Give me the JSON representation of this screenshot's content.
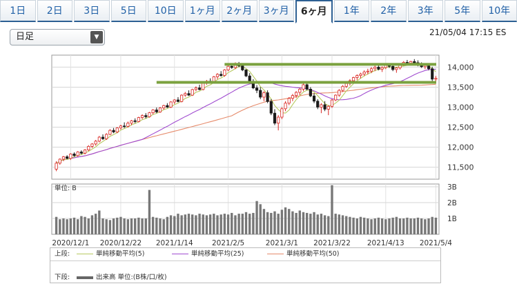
{
  "tabs": [
    {
      "label": "1日",
      "active": false
    },
    {
      "label": "2日",
      "active": false
    },
    {
      "label": "3日",
      "active": false
    },
    {
      "label": "5日",
      "active": false
    },
    {
      "label": "10日",
      "active": false
    },
    {
      "label": "1ヶ月",
      "active": false
    },
    {
      "label": "2ヶ月",
      "active": false
    },
    {
      "label": "3ヶ月",
      "active": false
    },
    {
      "label": "6ヶ月",
      "active": true
    },
    {
      "label": "1年",
      "active": false
    },
    {
      "label": "2年",
      "active": false
    },
    {
      "label": "3年",
      "active": false
    },
    {
      "label": "5年",
      "active": false
    },
    {
      "label": "10年",
      "active": false
    }
  ],
  "period_select": {
    "value": "日足"
  },
  "timestamp": "21/05/04 17:15 ES",
  "chart_data": {
    "type": "candlestick",
    "price_ticks": [
      "14,000",
      "13,500",
      "13,000",
      "12,500",
      "12,000",
      "11,500"
    ],
    "price_tick_values": [
      14000,
      13500,
      13000,
      12500,
      12000,
      11500
    ],
    "volume_ticks": [
      "3B",
      "2B",
      "1B"
    ],
    "volume_label": "単位: B",
    "x_labels": [
      "2020/12/1",
      "2020/12/22",
      "2021/1/14",
      "2021/2/5",
      "2021/3/1",
      "2021/3/22",
      "2021/4/13",
      "2021/5/4"
    ],
    "x_label_index": [
      4,
      18,
      33,
      48,
      63,
      77,
      92,
      106
    ],
    "horizontal_lines": [
      {
        "price": 14070,
        "start_index": 47,
        "color": "#7ba23f"
      },
      {
        "price": 13620,
        "start_index": 28,
        "color": "#7ba23f"
      }
    ],
    "colors": {
      "up": "#d9231f",
      "down": "#1a1a1a",
      "ma5": "#b7c95f",
      "ma25": "#a04bd0",
      "ma50": "#e68a6a",
      "volume": "#777777",
      "hline": "#7ba23f"
    },
    "candles": [
      [
        11450,
        11650,
        11400,
        11600
      ],
      [
        11600,
        11720,
        11560,
        11700
      ],
      [
        11700,
        11780,
        11650,
        11760
      ],
      [
        11760,
        11800,
        11700,
        11720
      ],
      [
        11720,
        11850,
        11680,
        11830
      ],
      [
        11830,
        11870,
        11760,
        11790
      ],
      [
        11790,
        11900,
        11760,
        11880
      ],
      [
        11880,
        11920,
        11820,
        11850
      ],
      [
        11850,
        11950,
        11820,
        11930
      ],
      [
        11930,
        12050,
        11900,
        12020
      ],
      [
        12020,
        12100,
        11980,
        12080
      ],
      [
        12080,
        12180,
        12040,
        12150
      ],
      [
        12150,
        12280,
        12120,
        12250
      ],
      [
        12250,
        12320,
        12180,
        12210
      ],
      [
        12210,
        12350,
        12180,
        12320
      ],
      [
        12320,
        12450,
        12300,
        12420
      ],
      [
        12420,
        12480,
        12350,
        12380
      ],
      [
        12380,
        12500,
        12350,
        12480
      ],
      [
        12480,
        12560,
        12440,
        12530
      ],
      [
        12530,
        12620,
        12480,
        12520
      ],
      [
        12520,
        12640,
        12490,
        12600
      ],
      [
        12600,
        12680,
        12550,
        12660
      ],
      [
        12660,
        12720,
        12600,
        12640
      ],
      [
        12640,
        12760,
        12620,
        12740
      ],
      [
        12740,
        12820,
        12700,
        12790
      ],
      [
        12790,
        12850,
        12720,
        12760
      ],
      [
        12760,
        12880,
        12740,
        12860
      ],
      [
        12860,
        12950,
        12820,
        12930
      ],
      [
        12930,
        12990,
        12850,
        12880
      ],
      [
        12880,
        13000,
        12860,
        12980
      ],
      [
        12980,
        13060,
        12940,
        13040
      ],
      [
        13040,
        13100,
        12980,
        13000
      ],
      [
        13000,
        13150,
        12980,
        13130
      ],
      [
        13130,
        13200,
        13080,
        13180
      ],
      [
        13180,
        13250,
        13120,
        13140
      ],
      [
        13140,
        13320,
        13120,
        13300
      ],
      [
        13300,
        13380,
        13260,
        13340
      ],
      [
        13340,
        13420,
        13280,
        13300
      ],
      [
        13300,
        13460,
        13280,
        13440
      ],
      [
        13440,
        13520,
        13400,
        13480
      ],
      [
        13480,
        13560,
        13420,
        13440
      ],
      [
        13440,
        13620,
        13420,
        13600
      ],
      [
        13600,
        13680,
        13560,
        13650
      ],
      [
        13650,
        13720,
        13600,
        13620
      ],
      [
        13620,
        13780,
        13600,
        13760
      ],
      [
        13760,
        13850,
        13700,
        13820
      ],
      [
        13820,
        13900,
        13760,
        13790
      ],
      [
        13790,
        13950,
        13760,
        13930
      ],
      [
        13930,
        14050,
        13900,
        14020
      ],
      [
        14020,
        14100,
        13960,
        13990
      ],
      [
        13990,
        14120,
        13950,
        14090
      ],
      [
        14090,
        14130,
        14000,
        14030
      ],
      [
        14030,
        14080,
        13900,
        13930
      ],
      [
        13930,
        13950,
        13750,
        13780
      ],
      [
        13780,
        13850,
        13600,
        13640
      ],
      [
        13640,
        13700,
        13450,
        13480
      ],
      [
        13480,
        13550,
        13350,
        13420
      ],
      [
        13420,
        13500,
        13200,
        13250
      ],
      [
        13250,
        13400,
        13150,
        13360
      ],
      [
        13360,
        13420,
        13100,
        13140
      ],
      [
        13140,
        13200,
        12800,
        12850
      ],
      [
        12850,
        12950,
        12550,
        12600
      ],
      [
        12600,
        12800,
        12420,
        12750
      ],
      [
        12750,
        13000,
        12700,
        12960
      ],
      [
        12960,
        13150,
        12900,
        13100
      ],
      [
        13100,
        13250,
        13050,
        13220
      ],
      [
        13220,
        13330,
        13150,
        13290
      ],
      [
        13290,
        13400,
        13230,
        13370
      ],
      [
        13370,
        13480,
        13300,
        13450
      ],
      [
        13450,
        13600,
        13400,
        13560
      ],
      [
        13560,
        13620,
        13420,
        13450
      ],
      [
        13450,
        13500,
        13250,
        13280
      ],
      [
        13280,
        13350,
        13100,
        13150
      ],
      [
        13150,
        13200,
        12950,
        13000
      ],
      [
        13000,
        13100,
        12850,
        13060
      ],
      [
        13060,
        13150,
        12900,
        12950
      ],
      [
        12950,
        13050,
        12800,
        13020
      ],
      [
        13020,
        13200,
        12980,
        13180
      ],
      [
        13180,
        13320,
        13150,
        13300
      ],
      [
        13300,
        13450,
        13260,
        13420
      ],
      [
        13420,
        13550,
        13380,
        13520
      ],
      [
        13520,
        13620,
        13480,
        13590
      ],
      [
        13590,
        13700,
        13540,
        13660
      ],
      [
        13660,
        13760,
        13600,
        13740
      ],
      [
        13740,
        13820,
        13680,
        13790
      ],
      [
        13790,
        13860,
        13720,
        13830
      ],
      [
        13830,
        13920,
        13780,
        13880
      ],
      [
        13880,
        13960,
        13820,
        13900
      ],
      [
        13900,
        14000,
        13850,
        13960
      ],
      [
        13960,
        14040,
        13900,
        14000
      ],
      [
        14000,
        14060,
        13920,
        13950
      ],
      [
        13950,
        14020,
        13880,
        13990
      ],
      [
        13990,
        14080,
        13950,
        14050
      ],
      [
        14050,
        14100,
        13980,
        14020
      ],
      [
        14020,
        14090,
        13900,
        13940
      ],
      [
        13940,
        14000,
        13860,
        13980
      ],
      [
        13980,
        14100,
        13940,
        14080
      ],
      [
        14080,
        14150,
        14030,
        14120
      ],
      [
        14120,
        14180,
        14060,
        14100
      ],
      [
        14100,
        14160,
        14040,
        14140
      ],
      [
        14140,
        14200,
        14080,
        14110
      ],
      [
        14110,
        14170,
        14020,
        14060
      ],
      [
        14060,
        14120,
        13980,
        14010
      ],
      [
        14010,
        14080,
        13950,
        14040
      ],
      [
        14040,
        14100,
        13920,
        13960
      ],
      [
        13960,
        14010,
        13650,
        13700
      ],
      [
        13700,
        13780,
        13600,
        13720
      ]
    ],
    "volume": [
      1.1,
      0.95,
      1.0,
      0.95,
      1.0,
      1.05,
      0.95,
      1.15,
      1.1,
      1.0,
      1.2,
      1.3,
      1.5,
      1.0,
      0.95,
      0.9,
      1.0,
      1.05,
      1.1,
      1.0,
      0.95,
      1.0,
      1.0,
      1.05,
      1.0,
      1.0,
      2.8,
      1.1,
      1.05,
      1.0,
      0.95,
      1.1,
      1.2,
      1.15,
      1.3,
      1.2,
      1.25,
      1.3,
      1.25,
      1.2,
      1.3,
      1.25,
      1.2,
      1.25,
      1.3,
      1.2,
      1.25,
      1.3,
      1.25,
      1.35,
      1.2,
      1.3,
      1.3,
      1.4,
      1.3,
      1.35,
      2.1,
      1.9,
      1.6,
      1.4,
      1.35,
      1.45,
      1.3,
      1.55,
      1.7,
      1.6,
      1.45,
      1.35,
      1.5,
      1.4,
      1.35,
      1.3,
      1.4,
      1.25,
      1.3,
      1.2,
      1.15,
      3.1,
      1.3,
      1.25,
      1.2,
      1.15,
      1.1,
      1.05,
      1.0,
      1.1,
      1.05,
      1.0,
      0.95,
      1.0,
      1.05,
      1.0,
      0.95,
      1.0,
      1.05,
      1.1,
      1.0,
      1.0,
      1.05,
      1.0,
      1.0,
      1.05,
      1.0,
      0.95,
      1.0,
      1.1,
      1.05
    ]
  },
  "legend": {
    "upper_label": "上段:",
    "lower_label": "下段:",
    "ma5": "単純移動平均(5)",
    "ma25": "単純移動平均(25)",
    "ma50": "単純移動平均(50)",
    "volume": "出来高 単位:(B株/口/枚)"
  }
}
